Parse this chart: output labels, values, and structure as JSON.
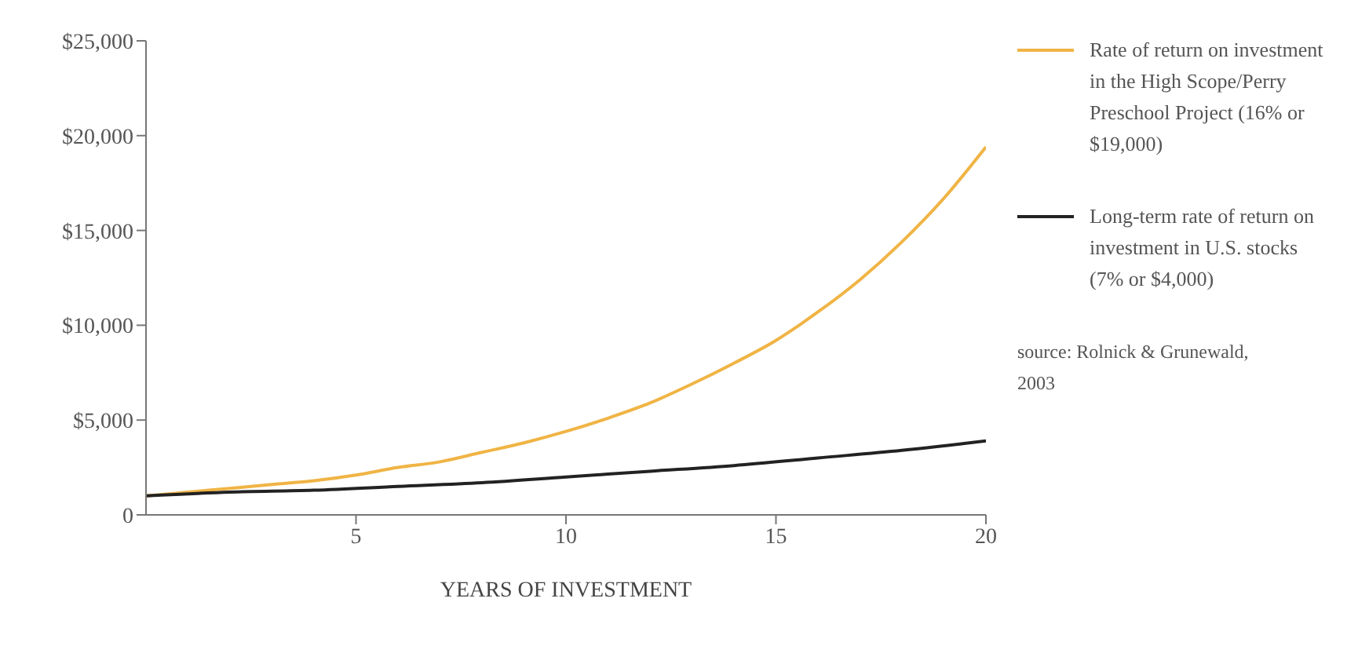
{
  "chart_data": {
    "type": "line",
    "xlabel": "YEARS OF INVESTMENT",
    "xlim": [
      0,
      20
    ],
    "xticks": [
      5,
      10,
      15,
      20
    ],
    "ylim": [
      0,
      25000
    ],
    "yticks": [
      {
        "value": 0,
        "label": "0"
      },
      {
        "value": 5000,
        "label": "$5,000"
      },
      {
        "value": 10000,
        "label": "$10,000"
      },
      {
        "value": 15000,
        "label": "$15,000"
      },
      {
        "value": 20000,
        "label": "$20,000"
      },
      {
        "value": 25000,
        "label": "$25,000"
      }
    ],
    "series": [
      {
        "name": "Rate of return on investment in the High Scope/Perry Preschool Project (16% or $19,000)",
        "color": "#f0b445",
        "x": [
          0,
          1,
          2,
          3,
          4,
          5,
          6,
          7,
          8,
          9,
          10,
          11,
          12,
          13,
          14,
          15,
          16,
          17,
          18,
          19,
          20
        ],
        "values": [
          1000,
          1200,
          1400,
          1600,
          1800,
          2100,
          2500,
          2800,
          3300,
          3800,
          4400,
          5100,
          5900,
          6900,
          8000,
          9200,
          10700,
          12400,
          14400,
          16700,
          19400
        ]
      },
      {
        "name": "Long-term rate of return on investment in U.S. stocks (7% or $4,000)",
        "color": "#222222",
        "x": [
          0,
          2,
          4,
          6,
          8,
          10,
          12,
          14,
          16,
          18,
          20
        ],
        "values": [
          1000,
          1200,
          1300,
          1500,
          1700,
          2000,
          2300,
          2600,
          3000,
          3400,
          3900
        ]
      }
    ],
    "legend": "right",
    "marker": "none",
    "line_style": "solid",
    "annotations": [
      "source: Rolnick & Grunewald, 2003"
    ]
  }
}
